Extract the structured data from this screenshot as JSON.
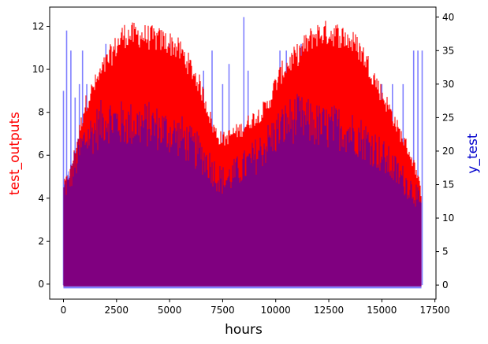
{
  "chart_data": {
    "type": "line",
    "title": "",
    "xlabel": "hours",
    "ylabel_left": "test_outputs",
    "ylabel_right": "y_test",
    "xlim": [
      -650,
      17550
    ],
    "ylim_left": [
      -0.7,
      12.9
    ],
    "ylim_right": [
      -2.1,
      41.5
    ],
    "x_ticks": [
      0,
      2500,
      5000,
      7500,
      10000,
      12500,
      15000,
      17500
    ],
    "y_left_ticks": [
      0,
      2,
      4,
      6,
      8,
      10,
      12
    ],
    "y_right_ticks": [
      0,
      5,
      10,
      15,
      20,
      25,
      30,
      35,
      40
    ],
    "grid": false,
    "legend": "none",
    "series": [
      {
        "name": "test_outputs",
        "axis": "left",
        "color": "#ff0000",
        "envelope_x": [
          0,
          300,
          700,
          1000,
          1300,
          1600,
          2000,
          2400,
          2800,
          3200,
          3600,
          4000,
          4400,
          4800,
          5200,
          5600,
          6000,
          6400,
          6800,
          7000,
          7300,
          7600,
          8000,
          8400,
          8800,
          9200,
          9600,
          10000,
          10300,
          10600,
          11000,
          11400,
          11800,
          12200,
          12600,
          13000,
          13400,
          13800,
          14200,
          14600,
          15000,
          15400,
          15800,
          16200,
          16600,
          16850
        ],
        "envelope_max": [
          4.8,
          5.4,
          7.2,
          8.7,
          9.4,
          10.0,
          10.8,
          11.5,
          12.2,
          12.2,
          12.2,
          12.1,
          12.0,
          11.9,
          11.7,
          11.3,
          10.6,
          9.8,
          8.6,
          7.8,
          7.2,
          7.1,
          7.4,
          7.6,
          8.0,
          8.3,
          8.7,
          9.8,
          10.4,
          10.8,
          11.2,
          11.7,
          12.2,
          12.3,
          12.3,
          12.2,
          12.0,
          11.7,
          11.1,
          10.2,
          9.3,
          8.5,
          7.5,
          6.7,
          5.6,
          4.5
        ],
        "envelope_min": [
          -0.1,
          -0.1,
          -0.1,
          -0.1,
          -0.1,
          -0.1,
          -0.1,
          -0.1,
          -0.1,
          -0.1,
          -0.1,
          -0.1,
          -0.1,
          -0.1,
          -0.1,
          -0.1,
          -0.1,
          -0.1,
          -0.1,
          -0.1,
          -0.1,
          -0.1,
          -0.1,
          -0.1,
          -0.1,
          -0.1,
          -0.1,
          -0.1,
          -0.1,
          -0.1,
          -0.1,
          -0.1,
          -0.1,
          -0.1,
          -0.1,
          -0.1,
          -0.1,
          -0.1,
          -0.1,
          -0.1,
          -0.1,
          -0.1,
          -0.1,
          -0.1,
          -0.1,
          -0.1
        ]
      },
      {
        "name": "y_test",
        "axis": "right",
        "color": "#8080ff",
        "overlap_color": "#800080",
        "envelope_x": [
          0,
          300,
          700,
          1000,
          1300,
          1600,
          2000,
          2400,
          2800,
          3200,
          3600,
          4000,
          4400,
          4800,
          5200,
          5600,
          6000,
          6400,
          6800,
          7000,
          7300,
          7600,
          8000,
          8400,
          8800,
          9200,
          9600,
          10000,
          10300,
          10600,
          11000,
          11400,
          11800,
          12200,
          12600,
          13000,
          13400,
          13800,
          14200,
          14600,
          15000,
          15400,
          15800,
          16200,
          16600,
          16850
        ],
        "envelope_max": [
          15.0,
          17.0,
          20.5,
          23.0,
          24.0,
          25.0,
          26.5,
          26.0,
          25.5,
          25.5,
          25.5,
          25.5,
          25.0,
          24.5,
          24.0,
          23.5,
          22.0,
          21.0,
          19.5,
          18.5,
          17.0,
          16.5,
          17.5,
          18.5,
          19.5,
          21.0,
          22.5,
          24.0,
          25.0,
          26.0,
          26.5,
          26.0,
          25.5,
          25.0,
          25.0,
          25.0,
          24.5,
          24.0,
          23.0,
          22.0,
          20.5,
          19.0,
          17.5,
          16.0,
          14.5,
          12.0
        ],
        "envelope_min": [
          -0.5,
          -0.5,
          -0.5,
          -0.5,
          -0.5,
          -0.5,
          -0.5,
          -0.5,
          -0.5,
          -0.5,
          -0.5,
          -0.5,
          -0.5,
          -0.5,
          -0.5,
          -0.5,
          -0.5,
          -0.5,
          -0.5,
          -0.5,
          -0.5,
          -0.5,
          -0.5,
          -0.5,
          -0.5,
          -0.5,
          -0.5,
          -0.5,
          -0.5,
          -0.5,
          -0.5,
          -0.5,
          -0.5,
          -0.5,
          -0.5,
          -0.5,
          -0.5,
          -0.5,
          -0.5,
          -0.5,
          -0.5,
          -0.5,
          -0.5,
          -0.5,
          -0.5,
          -0.5
        ],
        "peaks_x": [
          0,
          150,
          350,
          550,
          750,
          900,
          1100,
          1700,
          2000,
          2400,
          3700,
          4200,
          5000,
          6600,
          7000,
          7500,
          7800,
          8500,
          8700,
          10200,
          10500,
          11200,
          11600,
          12700,
          13100,
          13700,
          15000,
          15500,
          16000,
          16500,
          16700,
          16900
        ],
        "peaks_y": [
          29,
          38,
          35,
          28,
          30,
          35,
          30,
          30,
          36,
          35,
          34,
          36,
          36,
          32,
          35,
          30,
          33,
          40,
          32,
          35,
          35,
          36,
          34,
          35,
          30,
          35,
          30,
          30,
          30,
          35,
          35,
          35
        ]
      }
    ]
  }
}
